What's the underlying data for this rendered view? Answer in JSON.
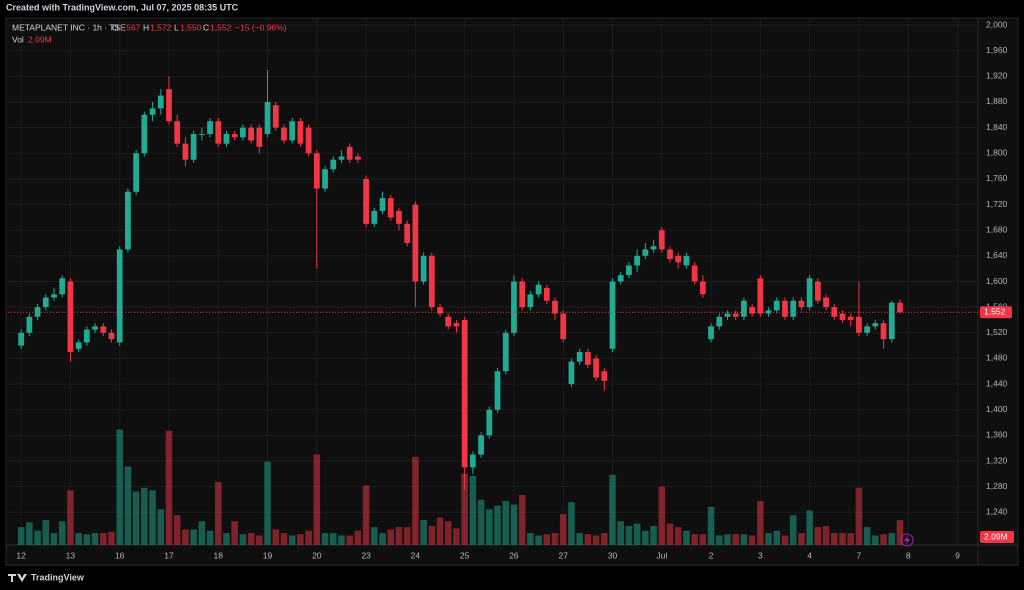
{
  "chart_data": {
    "type": "candlestick",
    "created": "Created with TradingView.com, Jul 07, 2025 08:35 UTC",
    "symbol": "METAPLANET INC · 1h · TSE",
    "legend": {
      "o_label": "O",
      "o": "1,567",
      "h_label": "H",
      "h": "1,572",
      "l_label": "L",
      "l": "1,550",
      "c_label": "C",
      "c": "1,552",
      "change": "−15 (−0.96%)",
      "vol_label": "Vol",
      "vol": "2.09M"
    },
    "last_price_label": "1,552",
    "last_price": 1552,
    "volume_value_label": "2.09M",
    "brand": "TradingView",
    "up_color": "#22ab94",
    "down_color": "#f23645",
    "grid": true,
    "xlim": [
      -1.6,
      116.5
    ],
    "xticks": [
      {
        "value": 0,
        "label": "12"
      },
      {
        "value": 6,
        "label": "13"
      },
      {
        "value": 12,
        "label": "16"
      },
      {
        "value": 18,
        "label": "17"
      },
      {
        "value": 24,
        "label": "18"
      },
      {
        "value": 30,
        "label": "19"
      },
      {
        "value": 36,
        "label": "20"
      },
      {
        "value": 42,
        "label": "23"
      },
      {
        "value": 48,
        "label": "24"
      },
      {
        "value": 54,
        "label": "25"
      },
      {
        "value": 60,
        "label": "26"
      },
      {
        "value": 66,
        "label": "27"
      },
      {
        "value": 72,
        "label": "30"
      },
      {
        "value": 78,
        "label": "Jul"
      },
      {
        "value": 84,
        "label": "2"
      },
      {
        "value": 90,
        "label": "3"
      },
      {
        "value": 96,
        "label": "4"
      },
      {
        "value": 102,
        "label": "7"
      },
      {
        "value": 108,
        "label": "8"
      },
      {
        "value": 114,
        "label": "9"
      }
    ],
    "ylim": [
      1189,
      2011
    ],
    "yticks": [
      {
        "value": 1240,
        "label": "1,240"
      },
      {
        "value": 1280,
        "label": "1,280"
      },
      {
        "value": 1320,
        "label": "1,320"
      },
      {
        "value": 1360,
        "label": "1,360"
      },
      {
        "value": 1400,
        "label": "1,400"
      },
      {
        "value": 1440,
        "label": "1,440"
      },
      {
        "value": 1480,
        "label": "1,480"
      },
      {
        "value": 1520,
        "label": "1,520"
      },
      {
        "value": 1560,
        "label": "1,560"
      },
      {
        "value": 1600,
        "label": "1,600"
      },
      {
        "value": 1640,
        "label": "1,640"
      },
      {
        "value": 1680,
        "label": "1,680"
      },
      {
        "value": 1720,
        "label": "1,720"
      },
      {
        "value": 1760,
        "label": "1,760"
      },
      {
        "value": 1800,
        "label": "1,800"
      },
      {
        "value": 1840,
        "label": "1,840"
      },
      {
        "value": 1880,
        "label": "1,880"
      },
      {
        "value": 1920,
        "label": "1,920"
      },
      {
        "value": 1960,
        "label": "1,960"
      },
      {
        "value": 2000,
        "label": "2,000"
      }
    ],
    "open": [
      1500,
      1520,
      1545,
      1560,
      1575,
      1580,
      1600,
      1495,
      1505,
      1525,
      1530,
      1520,
      1505,
      1650,
      1740,
      1800,
      1860,
      1870,
      1900,
      1850,
      1815,
      1790,
      1830,
      1830,
      1850,
      1815,
      1830,
      1825,
      1840,
      1840,
      1830,
      1875,
      1840,
      1820,
      1850,
      1840,
      1800,
      1745,
      1775,
      1790,
      1810,
      1795,
      1760,
      1690,
      1710,
      1730,
      1710,
      1690,
      1720,
      1600,
      1640,
      1560,
      1545,
      1535,
      1540,
      1310,
      1330,
      1360,
      1400,
      1460,
      1520,
      1600,
      1560,
      1580,
      1590,
      1570,
      1550,
      1440,
      1475,
      1490,
      1480,
      1460,
      1495,
      1600,
      1610,
      1625,
      1640,
      1650,
      1680,
      1650,
      1640,
      1625,
      1625,
      1600,
      1510,
      1530,
      1545,
      1550,
      1545,
      1560,
      1605,
      1550,
      1555,
      1570,
      1545,
      1570,
      1560,
      1600,
      1575,
      1560,
      1550,
      1545,
      1545,
      1520,
      1530,
      1535,
      1510,
      1567
    ],
    "high": [
      1525,
      1550,
      1565,
      1580,
      1590,
      1610,
      1605,
      1510,
      1530,
      1535,
      1535,
      1525,
      1655,
      1745,
      1805,
      1865,
      1880,
      1900,
      1920,
      1860,
      1825,
      1835,
      1840,
      1855,
      1855,
      1835,
      1835,
      1845,
      1845,
      1845,
      1930,
      1880,
      1845,
      1855,
      1855,
      1845,
      1805,
      1780,
      1795,
      1805,
      1815,
      1800,
      1765,
      1715,
      1740,
      1735,
      1715,
      1695,
      1725,
      1645,
      1645,
      1565,
      1550,
      1540,
      1545,
      1335,
      1365,
      1405,
      1465,
      1525,
      1610,
      1605,
      1585,
      1600,
      1595,
      1575,
      1555,
      1480,
      1495,
      1495,
      1485,
      1465,
      1605,
      1615,
      1630,
      1650,
      1660,
      1665,
      1685,
      1655,
      1645,
      1645,
      1630,
      1610,
      1535,
      1550,
      1555,
      1555,
      1575,
      1565,
      1610,
      1560,
      1575,
      1575,
      1575,
      1575,
      1610,
      1605,
      1580,
      1565,
      1555,
      1550,
      1600,
      1535,
      1540,
      1540,
      1570,
      1572
    ],
    "low": [
      1495,
      1515,
      1540,
      1555,
      1570,
      1575,
      1475,
      1490,
      1500,
      1520,
      1515,
      1505,
      1500,
      1645,
      1735,
      1795,
      1850,
      1860,
      1845,
      1810,
      1780,
      1785,
      1820,
      1825,
      1810,
      1810,
      1820,
      1820,
      1815,
      1800,
      1825,
      1835,
      1815,
      1815,
      1810,
      1795,
      1620,
      1740,
      1770,
      1785,
      1785,
      1785,
      1685,
      1685,
      1705,
      1695,
      1680,
      1655,
      1560,
      1595,
      1555,
      1545,
      1525,
      1520,
      1275,
      1300,
      1325,
      1355,
      1395,
      1455,
      1515,
      1555,
      1555,
      1575,
      1565,
      1540,
      1505,
      1435,
      1470,
      1465,
      1445,
      1430,
      1490,
      1595,
      1605,
      1615,
      1635,
      1645,
      1645,
      1630,
      1620,
      1620,
      1595,
      1575,
      1505,
      1525,
      1540,
      1540,
      1540,
      1545,
      1545,
      1545,
      1550,
      1540,
      1540,
      1555,
      1555,
      1565,
      1555,
      1540,
      1535,
      1530,
      1515,
      1515,
      1525,
      1495,
      1505,
      1550
    ],
    "close": [
      1520,
      1545,
      1560,
      1575,
      1580,
      1605,
      1490,
      1505,
      1525,
      1530,
      1520,
      1510,
      1650,
      1740,
      1800,
      1860,
      1870,
      1890,
      1850,
      1815,
      1790,
      1830,
      1830,
      1850,
      1815,
      1830,
      1825,
      1840,
      1820,
      1810,
      1880,
      1840,
      1820,
      1850,
      1815,
      1800,
      1745,
      1775,
      1790,
      1795,
      1790,
      1790,
      1690,
      1710,
      1730,
      1700,
      1690,
      1660,
      1600,
      1640,
      1560,
      1550,
      1530,
      1530,
      1310,
      1330,
      1360,
      1400,
      1460,
      1520,
      1600,
      1560,
      1580,
      1595,
      1570,
      1550,
      1510,
      1475,
      1490,
      1470,
      1450,
      1445,
      1600,
      1610,
      1625,
      1640,
      1650,
      1655,
      1650,
      1635,
      1630,
      1640,
      1600,
      1580,
      1530,
      1545,
      1550,
      1545,
      1570,
      1550,
      1550,
      1555,
      1570,
      1545,
      1570,
      1560,
      1605,
      1570,
      1560,
      1545,
      1540,
      1540,
      1520,
      1530,
      1535,
      1510,
      1567,
      1552
    ],
    "volume": [
      1.5,
      1.9,
      1.2,
      2.1,
      1.0,
      2.0,
      4.6,
      1.0,
      0.9,
      1.0,
      1.0,
      1.1,
      9.7,
      6.6,
      4.5,
      4.8,
      4.6,
      3.0,
      9.6,
      2.5,
      1.3,
      1.3,
      2.0,
      1.2,
      5.3,
      1.0,
      2.0,
      0.9,
      1.0,
      0.8,
      7.0,
      1.3,
      1.0,
      0.8,
      0.9,
      1.2,
      7.6,
      1.0,
      1.0,
      0.8,
      0.8,
      1.2,
      5.0,
      1.5,
      1.0,
      1.3,
      1.5,
      1.5,
      7.4,
      2.1,
      1.6,
      2.3,
      2.0,
      1.4,
      6.0,
      5.8,
      3.8,
      3.0,
      3.3,
      3.7,
      3.4,
      4.2,
      1.0,
      0.8,
      0.9,
      1.0,
      2.6,
      3.6,
      1.0,
      0.9,
      0.8,
      1.0,
      5.9,
      2.0,
      1.6,
      1.8,
      1.2,
      1.6,
      4.9,
      1.8,
      1.5,
      1.2,
      0.9,
      0.9,
      3.2,
      0.8,
      0.9,
      0.9,
      0.9,
      0.8,
      3.7,
      1.0,
      1.2,
      0.8,
      2.5,
      1.0,
      2.9,
      1.5,
      1.6,
      1.0,
      1.0,
      1.0,
      4.8,
      1.5,
      0.8,
      0.9,
      1.0,
      2.09
    ]
  }
}
